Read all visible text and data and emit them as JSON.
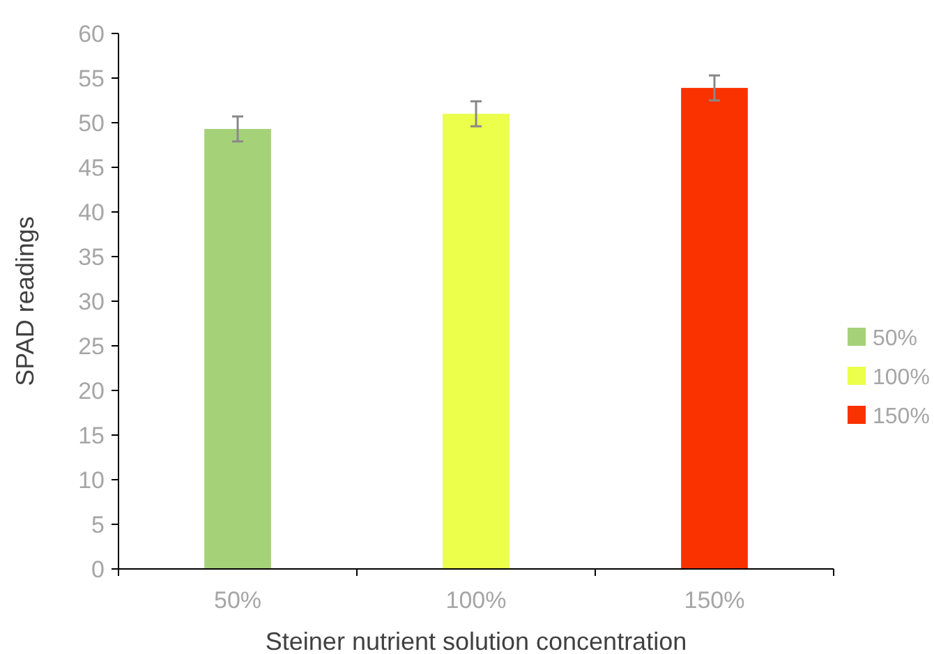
{
  "chart_data": {
    "type": "bar",
    "xlabel": "Steiner nutrient solution concentration",
    "ylabel": "SPAD readings",
    "categories": [
      "50%",
      "100%",
      "150%"
    ],
    "series": [
      {
        "name": "50%",
        "color": "#a5d279",
        "values": [
          49.3,
          null,
          null
        ],
        "errors": [
          1.4,
          null,
          null
        ]
      },
      {
        "name": "100%",
        "color": "#ebff4b",
        "values": [
          null,
          51.0,
          null
        ],
        "errors": [
          null,
          1.4,
          null
        ]
      },
      {
        "name": "150%",
        "color": "#fa3200",
        "values": [
          null,
          null,
          53.9
        ],
        "errors": [
          null,
          null,
          1.4
        ]
      }
    ],
    "ylim": [
      0,
      60
    ],
    "yticks": [
      0,
      5,
      10,
      15,
      20,
      25,
      30,
      35,
      40,
      45,
      50,
      55,
      60
    ],
    "legend": "right"
  }
}
